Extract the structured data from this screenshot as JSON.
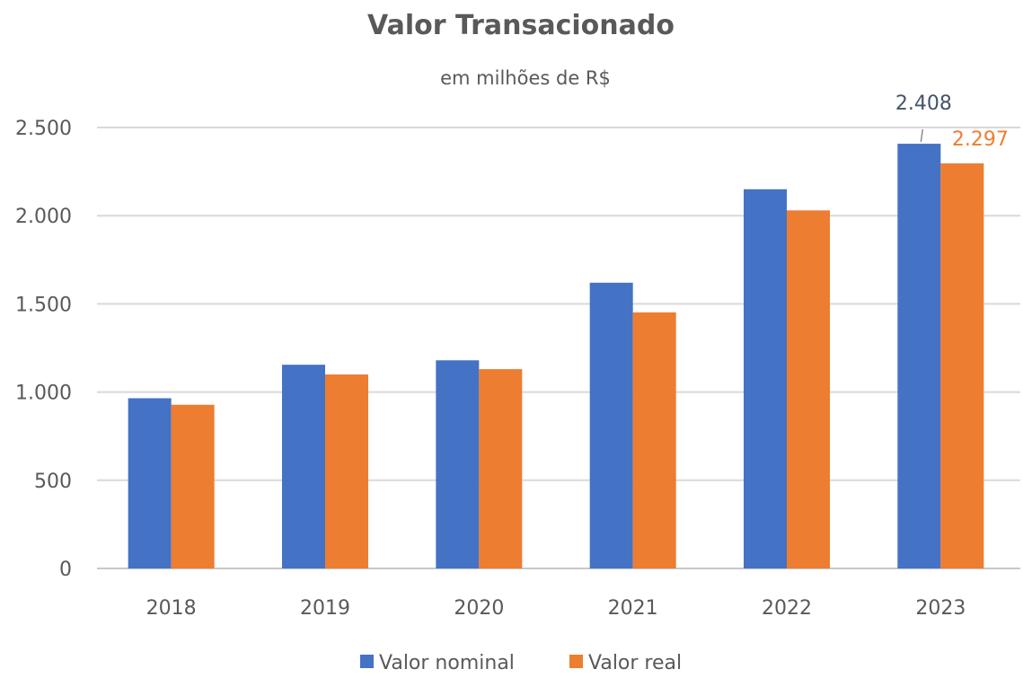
{
  "chart_data": {
    "type": "bar",
    "title": "Valor Transacionado",
    "subtitle": "em milhões de R$",
    "xlabel": "",
    "ylabel": "",
    "categories": [
      "2018",
      "2019",
      "2020",
      "2021",
      "2022",
      "2023"
    ],
    "series": [
      {
        "name": "Valor nominal",
        "color": "#4472C4",
        "values": [
          965,
          1155,
          1180,
          1620,
          2150,
          2408
        ]
      },
      {
        "name": "Valor real",
        "color": "#ED7D31",
        "values": [
          928,
          1100,
          1130,
          1452,
          2030,
          2297
        ]
      }
    ],
    "ylim": [
      0,
      2500
    ],
    "yticks": [
      0,
      500,
      1000,
      1500,
      2000,
      2500
    ],
    "ytick_labels": [
      "0",
      "500",
      "1.000",
      "1.500",
      "2.000",
      "2.500"
    ],
    "grid": true,
    "legend": "bottom",
    "data_labels": [
      {
        "series": "Valor nominal",
        "category": "2023",
        "text": "2.408"
      },
      {
        "series": "Valor real",
        "category": "2023",
        "text": "2.297"
      }
    ]
  }
}
